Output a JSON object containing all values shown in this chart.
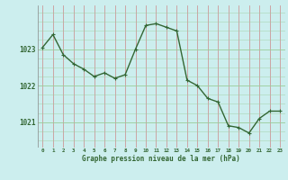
{
  "x": [
    0,
    1,
    2,
    3,
    4,
    5,
    6,
    7,
    8,
    9,
    10,
    11,
    12,
    13,
    14,
    15,
    16,
    17,
    18,
    19,
    20,
    21,
    22,
    23
  ],
  "y": [
    1023.05,
    1023.4,
    1022.85,
    1022.6,
    1022.45,
    1022.25,
    1022.35,
    1022.2,
    1022.3,
    1023.0,
    1023.65,
    1023.7,
    1023.6,
    1023.5,
    1022.15,
    1022.0,
    1021.65,
    1021.55,
    1020.9,
    1020.85,
    1020.7,
    1021.1,
    1021.3,
    1021.3
  ],
  "line_color": "#336633",
  "marker_color": "#336633",
  "bg_color": "#cceeee",
  "grid_color_x": "#cc9999",
  "grid_color_y": "#99cc99",
  "xlabel": "Graphe pression niveau de la mer (hPa)",
  "xlabel_color": "#336633",
  "tick_color": "#336633",
  "yticks": [
    1021,
    1022,
    1023
  ],
  "ylim": [
    1020.3,
    1024.2
  ],
  "xlim": [
    -0.5,
    23.5
  ],
  "marker_size": 2.5,
  "line_width": 1.0,
  "figsize": [
    3.2,
    2.0
  ],
  "dpi": 100
}
